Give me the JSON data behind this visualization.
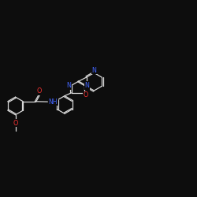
{
  "background_color": "#0d0d0d",
  "bond_color": "#d8d8d8",
  "atom_colors": {
    "N": "#4466ff",
    "O": "#ff3333",
    "C": "#d8d8d8"
  },
  "figsize": [
    2.5,
    2.5
  ],
  "dpi": 100
}
